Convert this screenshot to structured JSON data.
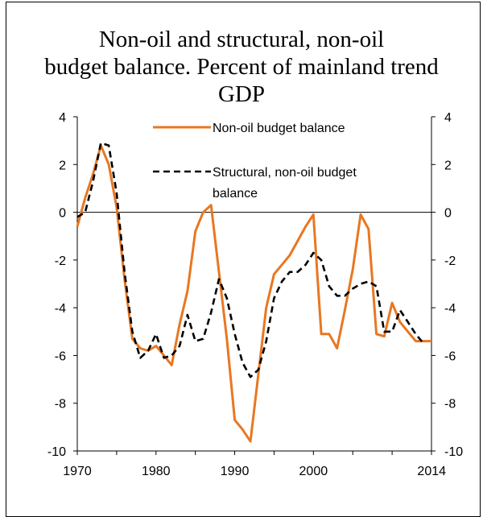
{
  "title_lines": [
    "Non-oil and structural, non-oil",
    "budget balance. Percent of mainland trend",
    "GDP"
  ],
  "chart_data": {
    "type": "line",
    "title": "Non-oil and structural, non-oil budget balance. Percent of mainland trend GDP",
    "ylim": [
      -10,
      4
    ],
    "xlim": [
      1970,
      2015
    ],
    "y_ticks": [
      "4",
      "2",
      "0",
      "-2",
      "-4",
      "-6",
      "-8",
      "-10"
    ],
    "y_tick_values": [
      4,
      2,
      0,
      -2,
      -4,
      -6,
      -8,
      -10
    ],
    "x_ticks": [
      "1970",
      "1980",
      "1990",
      "2000",
      "2014"
    ],
    "x_tick_values": [
      1970,
      1980,
      1990,
      2000,
      2014
    ],
    "grid": false,
    "legend_position": "top",
    "series": [
      {
        "name": "Non-oil budget balance",
        "color": "#E87722",
        "style": "solid",
        "x": [
          1970,
          1971,
          1972,
          1973,
          1974,
          1975,
          1976,
          1977,
          1978,
          1979,
          1980,
          1981,
          1982,
          1983,
          1984,
          1985,
          1986,
          1987,
          1988,
          1989,
          1990,
          1991,
          1992,
          1993,
          1994,
          1995,
          1996,
          1997,
          1998,
          1999,
          2000,
          2001,
          2002,
          2003,
          2004,
          2005,
          2006,
          2007,
          2008,
          2009,
          2010,
          2011,
          2012,
          2013,
          2014,
          2015
        ],
        "values": [
          -0.6,
          0.6,
          1.6,
          2.8,
          2.0,
          0.2,
          -2.8,
          -5.3,
          -5.7,
          -5.8,
          -5.6,
          -6.0,
          -6.4,
          -4.7,
          -3.3,
          -0.8,
          0.0,
          0.3,
          -2.5,
          -5.3,
          -8.7,
          -9.1,
          -9.6,
          -6.8,
          -4.0,
          -2.6,
          -2.2,
          -1.8,
          -1.2,
          -0.6,
          -0.1,
          -5.1,
          -5.1,
          -5.7,
          -4.1,
          -2.4,
          -0.1,
          -0.7,
          -5.1,
          -5.2,
          -3.8,
          -4.6,
          -5.0,
          -5.4,
          -5.4,
          -5.4
        ]
      },
      {
        "name": "Structural, non-oil budget balance",
        "color": "#000000",
        "style": "dashed",
        "x": [
          1970,
          1971,
          1972,
          1973,
          1974,
          1975,
          1976,
          1977,
          1978,
          1979,
          1980,
          1981,
          1982,
          1983,
          1984,
          1985,
          1986,
          1987,
          1988,
          1989,
          1990,
          1991,
          1992,
          1993,
          1994,
          1995,
          1996,
          1997,
          1998,
          1999,
          2000,
          2001,
          2002,
          2003,
          2004,
          2005,
          2006,
          2007,
          2008,
          2009,
          2010,
          2011,
          2012,
          2013,
          2014
        ],
        "values": [
          -0.2,
          0.0,
          1.3,
          2.9,
          2.8,
          0.8,
          -2.5,
          -5.0,
          -6.1,
          -5.8,
          -5.1,
          -6.1,
          -6.0,
          -5.6,
          -4.3,
          -5.4,
          -5.3,
          -4.2,
          -2.8,
          -3.6,
          -5.1,
          -6.3,
          -6.9,
          -6.6,
          -5.4,
          -3.6,
          -2.9,
          -2.5,
          -2.5,
          -2.2,
          -1.7,
          -2.0,
          -3.1,
          -3.5,
          -3.5,
          -3.2,
          -3.0,
          -2.9,
          -3.1,
          -5.0,
          -5.0,
          -4.1,
          -4.6,
          -5.1,
          -5.5
        ]
      }
    ],
    "legend": [
      "Non-oil budget balance",
      "Structural, non-oil budget",
      "balance"
    ]
  }
}
